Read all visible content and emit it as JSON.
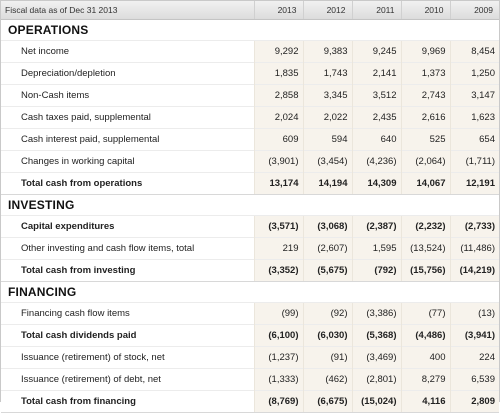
{
  "header": {
    "label": "Fiscal data as of Dec 31 2013",
    "years": [
      "2013",
      "2012",
      "2011",
      "2010",
      "2009"
    ]
  },
  "sections": [
    {
      "title": "OPERATIONS",
      "rows": [
        {
          "label": "Net income",
          "bold": false,
          "values": [
            "9,292",
            "9,383",
            "9,245",
            "9,969",
            "8,454"
          ]
        },
        {
          "label": "Depreciation/depletion",
          "bold": false,
          "values": [
            "1,835",
            "1,743",
            "2,141",
            "1,373",
            "1,250"
          ]
        },
        {
          "label": "Non-Cash items",
          "bold": false,
          "values": [
            "2,858",
            "3,345",
            "3,512",
            "2,743",
            "3,147"
          ]
        },
        {
          "label": "Cash taxes paid, supplemental",
          "bold": false,
          "values": [
            "2,024",
            "2,022",
            "2,435",
            "2,616",
            "1,623"
          ]
        },
        {
          "label": "Cash interest paid, supplemental",
          "bold": false,
          "values": [
            "609",
            "594",
            "640",
            "525",
            "654"
          ]
        },
        {
          "label": "Changes in working capital",
          "bold": false,
          "values": [
            "(3,901)",
            "(3,454)",
            "(4,236)",
            "(2,064)",
            "(1,711)"
          ]
        },
        {
          "label": "Total cash from operations",
          "bold": true,
          "values": [
            "13,174",
            "14,194",
            "14,309",
            "14,067",
            "12,191"
          ]
        }
      ]
    },
    {
      "title": "INVESTING",
      "rows": [
        {
          "label": "Capital expenditures",
          "bold": true,
          "values": [
            "(3,571)",
            "(3,068)",
            "(2,387)",
            "(2,232)",
            "(2,733)"
          ]
        },
        {
          "label": "Other investing and cash flow items, total",
          "bold": false,
          "values": [
            "219",
            "(2,607)",
            "1,595",
            "(13,524)",
            "(11,486)"
          ]
        },
        {
          "label": "Total cash from investing",
          "bold": true,
          "values": [
            "(3,352)",
            "(5,675)",
            "(792)",
            "(15,756)",
            "(14,219)"
          ]
        }
      ]
    },
    {
      "title": "FINANCING",
      "rows": [
        {
          "label": "Financing cash flow items",
          "bold": false,
          "values": [
            "(99)",
            "(92)",
            "(3,386)",
            "(77)",
            "(13)"
          ]
        },
        {
          "label": "Total cash dividends paid",
          "bold": true,
          "values": [
            "(6,100)",
            "(6,030)",
            "(5,368)",
            "(4,486)",
            "(3,941)"
          ]
        },
        {
          "label": "Issuance (retirement) of stock, net",
          "bold": false,
          "values": [
            "(1,237)",
            "(91)",
            "(3,469)",
            "400",
            "224"
          ]
        },
        {
          "label": "Issuance (retirement) of debt, net",
          "bold": false,
          "values": [
            "(1,333)",
            "(462)",
            "(2,801)",
            "8,279",
            "6,539"
          ]
        },
        {
          "label": "Total cash from financing",
          "bold": true,
          "values": [
            "(8,769)",
            "(6,675)",
            "(15,024)",
            "4,116",
            "2,809"
          ]
        }
      ]
    }
  ]
}
